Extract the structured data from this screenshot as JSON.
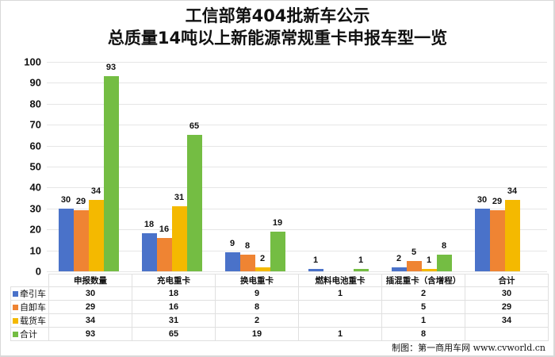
{
  "title": {
    "line1": "工信部第404批新车公示",
    "line2": "总质量14吨以上新能源常规重卡申报车型一览"
  },
  "colors": {
    "牵引车": "#4A72C9",
    "自卸车": "#EF8433",
    "载货车": "#F4B900",
    "合计": "#74BD43",
    "grid": "#e6e6e6"
  },
  "y_ticks": [
    "0",
    "10",
    "20",
    "30",
    "40",
    "50",
    "60",
    "70",
    "80",
    "90",
    "100"
  ],
  "table": {
    "headers": [
      "申报数量",
      "充电重卡",
      "换电重卡",
      "燃料电池重卡",
      "插混重卡（含增程）",
      "合计"
    ],
    "rows": [
      {
        "label": "牵引车",
        "values": [
          "30",
          "18",
          "9",
          "1",
          "2",
          "30"
        ]
      },
      {
        "label": "自卸车",
        "values": [
          "29",
          "16",
          "8",
          "",
          "5",
          "29"
        ]
      },
      {
        "label": "载货车",
        "values": [
          "34",
          "31",
          "2",
          "",
          "1",
          "34"
        ]
      },
      {
        "label": "合计",
        "values": [
          "93",
          "65",
          "19",
          "1",
          "8",
          ""
        ]
      }
    ]
  },
  "credit": "制图：第一商用车网 www.cvworld.cn",
  "chart_data": {
    "type": "bar",
    "title": "工信部第404批新车公示 总质量14吨以上新能源常规重卡申报车型一览",
    "categories": [
      "申报数量",
      "充电重卡",
      "换电重卡",
      "燃料电池重卡",
      "插混重卡（含增程）",
      "合计"
    ],
    "series": [
      {
        "name": "牵引车",
        "color": "#4A72C9",
        "values": [
          30,
          18,
          9,
          1,
          2,
          30
        ]
      },
      {
        "name": "自卸车",
        "color": "#EF8433",
        "values": [
          29,
          16,
          8,
          null,
          5,
          29
        ]
      },
      {
        "name": "载货车",
        "color": "#F4B900",
        "values": [
          34,
          31,
          2,
          null,
          1,
          34
        ]
      },
      {
        "name": "合计",
        "color": "#74BD43",
        "values": [
          93,
          65,
          19,
          1,
          8,
          null
        ]
      }
    ],
    "xlabel": "",
    "ylabel": "",
    "ylim": [
      0,
      100
    ],
    "yticks": [
      0,
      10,
      20,
      30,
      40,
      50,
      60,
      70,
      80,
      90,
      100
    ],
    "grid": true,
    "legend_position": "data-table-left",
    "data_labels": true
  }
}
